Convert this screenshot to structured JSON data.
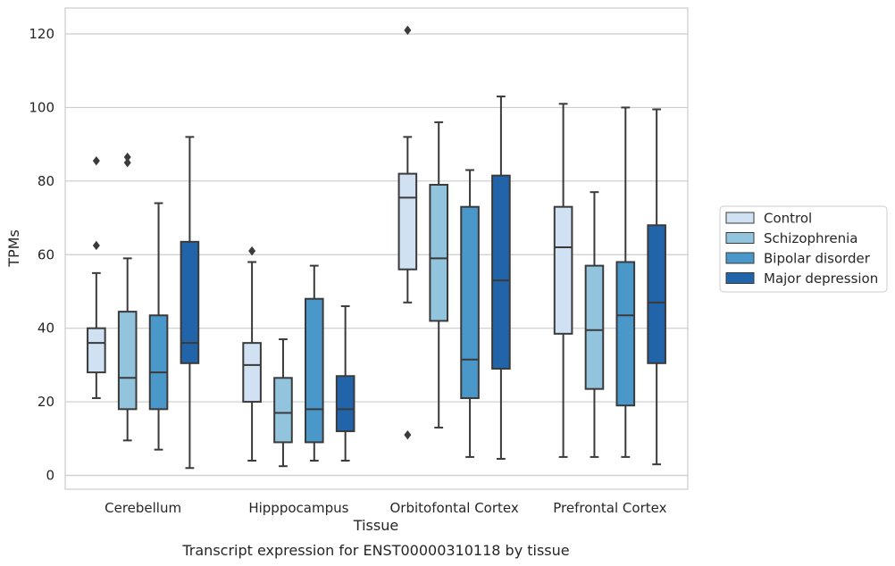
{
  "chart_data": {
    "type": "box",
    "title": "",
    "caption": "Transcript expression for ENST00000310118 by tissue",
    "xlabel": "Tissue",
    "ylabel": "TPMs",
    "ylim": [
      -4,
      127
    ],
    "yticks": [
      "0",
      "20",
      "40",
      "60",
      "80",
      "100",
      "120"
    ],
    "grid": "horizontal",
    "legend_position": "right",
    "categories": [
      "Cerebellum",
      "Hipppocampus",
      "Orbitofontal Cortex",
      "Prefrontal Cortex"
    ],
    "series": [
      {
        "name": "Control",
        "color": "#cfe1f2",
        "boxes": [
          {
            "whisker_low": 21,
            "q1": 28,
            "median": 36,
            "q3": 40,
            "whisker_high": 55,
            "outliers": [
              62.5,
              85.5
            ]
          },
          {
            "whisker_low": 4,
            "q1": 20,
            "median": 30,
            "q3": 36,
            "whisker_high": 58,
            "outliers": [
              61
            ]
          },
          {
            "whisker_low": 47,
            "q1": 56,
            "median": 75.5,
            "q3": 82,
            "whisker_high": 92,
            "outliers": [
              11,
              121
            ]
          },
          {
            "whisker_low": 5,
            "q1": 38.5,
            "median": 62,
            "q3": 73,
            "whisker_high": 101,
            "outliers": []
          }
        ]
      },
      {
        "name": "Schizophrenia",
        "color": "#93c4de",
        "boxes": [
          {
            "whisker_low": 9.5,
            "q1": 18,
            "median": 26.5,
            "q3": 44.5,
            "whisker_high": 59,
            "outliers": [
              85,
              86.5
            ]
          },
          {
            "whisker_low": 2.5,
            "q1": 9,
            "median": 17,
            "q3": 26.5,
            "whisker_high": 37,
            "outliers": []
          },
          {
            "whisker_low": 13,
            "q1": 42,
            "median": 59,
            "q3": 79,
            "whisker_high": 96,
            "outliers": []
          },
          {
            "whisker_low": 5,
            "q1": 23.5,
            "median": 39.5,
            "q3": 57,
            "whisker_high": 77,
            "outliers": []
          }
        ]
      },
      {
        "name": "Bipolar disorder",
        "color": "#4a98c9",
        "boxes": [
          {
            "whisker_low": 7,
            "q1": 18,
            "median": 28,
            "q3": 43.5,
            "whisker_high": 74,
            "outliers": []
          },
          {
            "whisker_low": 4,
            "q1": 9,
            "median": 18,
            "q3": 48,
            "whisker_high": 57,
            "outliers": []
          },
          {
            "whisker_low": 5,
            "q1": 21,
            "median": 31.5,
            "q3": 73,
            "whisker_high": 83,
            "outliers": []
          },
          {
            "whisker_low": 5,
            "q1": 19,
            "median": 43.5,
            "q3": 58,
            "whisker_high": 100,
            "outliers": []
          }
        ]
      },
      {
        "name": "Major depression",
        "color": "#2264a9",
        "boxes": [
          {
            "whisker_low": 2,
            "q1": 30.5,
            "median": 36,
            "q3": 63.5,
            "whisker_high": 92,
            "outliers": []
          },
          {
            "whisker_low": 4,
            "q1": 12,
            "median": 18,
            "q3": 27,
            "whisker_high": 46,
            "outliers": []
          },
          {
            "whisker_low": 4.5,
            "q1": 29,
            "median": 53,
            "q3": 81.5,
            "whisker_high": 103,
            "outliers": []
          },
          {
            "whisker_low": 3,
            "q1": 30.5,
            "median": 47,
            "q3": 68,
            "whisker_high": 99.5,
            "outliers": []
          }
        ]
      }
    ]
  }
}
